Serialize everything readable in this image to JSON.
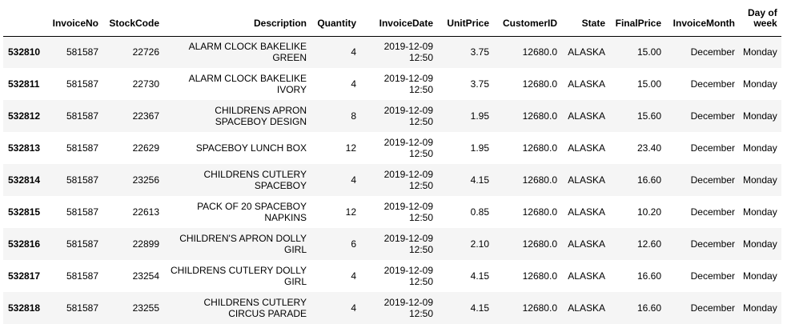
{
  "columns": [
    "",
    "InvoiceNo",
    "StockCode",
    "Description",
    "Quantity",
    "InvoiceDate",
    "UnitPrice",
    "CustomerID",
    "State",
    "FinalPrice",
    "InvoiceMonth",
    "Day of week"
  ],
  "rows": [
    {
      "index": "532810",
      "InvoiceNo": "581587",
      "StockCode": "22726",
      "Description": "ALARM CLOCK BAKELIKE GREEN",
      "Quantity": "4",
      "InvoiceDate": "2019-12-09 12:50",
      "UnitPrice": "3.75",
      "CustomerID": "12680.0",
      "State": "ALASKA",
      "FinalPrice": "15.00",
      "InvoiceMonth": "December",
      "DayOfWeek": "Monday"
    },
    {
      "index": "532811",
      "InvoiceNo": "581587",
      "StockCode": "22730",
      "Description": "ALARM CLOCK BAKELIKE IVORY",
      "Quantity": "4",
      "InvoiceDate": "2019-12-09 12:50",
      "UnitPrice": "3.75",
      "CustomerID": "12680.0",
      "State": "ALASKA",
      "FinalPrice": "15.00",
      "InvoiceMonth": "December",
      "DayOfWeek": "Monday"
    },
    {
      "index": "532812",
      "InvoiceNo": "581587",
      "StockCode": "22367",
      "Description": "CHILDRENS APRON SPACEBOY DESIGN",
      "Quantity": "8",
      "InvoiceDate": "2019-12-09 12:50",
      "UnitPrice": "1.95",
      "CustomerID": "12680.0",
      "State": "ALASKA",
      "FinalPrice": "15.60",
      "InvoiceMonth": "December",
      "DayOfWeek": "Monday"
    },
    {
      "index": "532813",
      "InvoiceNo": "581587",
      "StockCode": "22629",
      "Description": "SPACEBOY LUNCH BOX",
      "Quantity": "12",
      "InvoiceDate": "2019-12-09 12:50",
      "UnitPrice": "1.95",
      "CustomerID": "12680.0",
      "State": "ALASKA",
      "FinalPrice": "23.40",
      "InvoiceMonth": "December",
      "DayOfWeek": "Monday"
    },
    {
      "index": "532814",
      "InvoiceNo": "581587",
      "StockCode": "23256",
      "Description": "CHILDRENS CUTLERY SPACEBOY",
      "Quantity": "4",
      "InvoiceDate": "2019-12-09 12:50",
      "UnitPrice": "4.15",
      "CustomerID": "12680.0",
      "State": "ALASKA",
      "FinalPrice": "16.60",
      "InvoiceMonth": "December",
      "DayOfWeek": "Monday"
    },
    {
      "index": "532815",
      "InvoiceNo": "581587",
      "StockCode": "22613",
      "Description": "PACK OF 20 SPACEBOY NAPKINS",
      "Quantity": "12",
      "InvoiceDate": "2019-12-09 12:50",
      "UnitPrice": "0.85",
      "CustomerID": "12680.0",
      "State": "ALASKA",
      "FinalPrice": "10.20",
      "InvoiceMonth": "December",
      "DayOfWeek": "Monday"
    },
    {
      "index": "532816",
      "InvoiceNo": "581587",
      "StockCode": "22899",
      "Description": "CHILDREN'S APRON DOLLY GIRL",
      "Quantity": "6",
      "InvoiceDate": "2019-12-09 12:50",
      "UnitPrice": "2.10",
      "CustomerID": "12680.0",
      "State": "ALASKA",
      "FinalPrice": "12.60",
      "InvoiceMonth": "December",
      "DayOfWeek": "Monday"
    },
    {
      "index": "532817",
      "InvoiceNo": "581587",
      "StockCode": "23254",
      "Description": "CHILDRENS CUTLERY DOLLY GIRL",
      "Quantity": "4",
      "InvoiceDate": "2019-12-09 12:50",
      "UnitPrice": "4.15",
      "CustomerID": "12680.0",
      "State": "ALASKA",
      "FinalPrice": "16.60",
      "InvoiceMonth": "December",
      "DayOfWeek": "Monday"
    },
    {
      "index": "532818",
      "InvoiceNo": "581587",
      "StockCode": "23255",
      "Description": "CHILDRENS CUTLERY CIRCUS PARADE",
      "Quantity": "4",
      "InvoiceDate": "2019-12-09 12:50",
      "UnitPrice": "4.15",
      "CustomerID": "12680.0",
      "State": "ALASKA",
      "FinalPrice": "16.60",
      "InvoiceMonth": "December",
      "DayOfWeek": "Monday"
    }
  ]
}
